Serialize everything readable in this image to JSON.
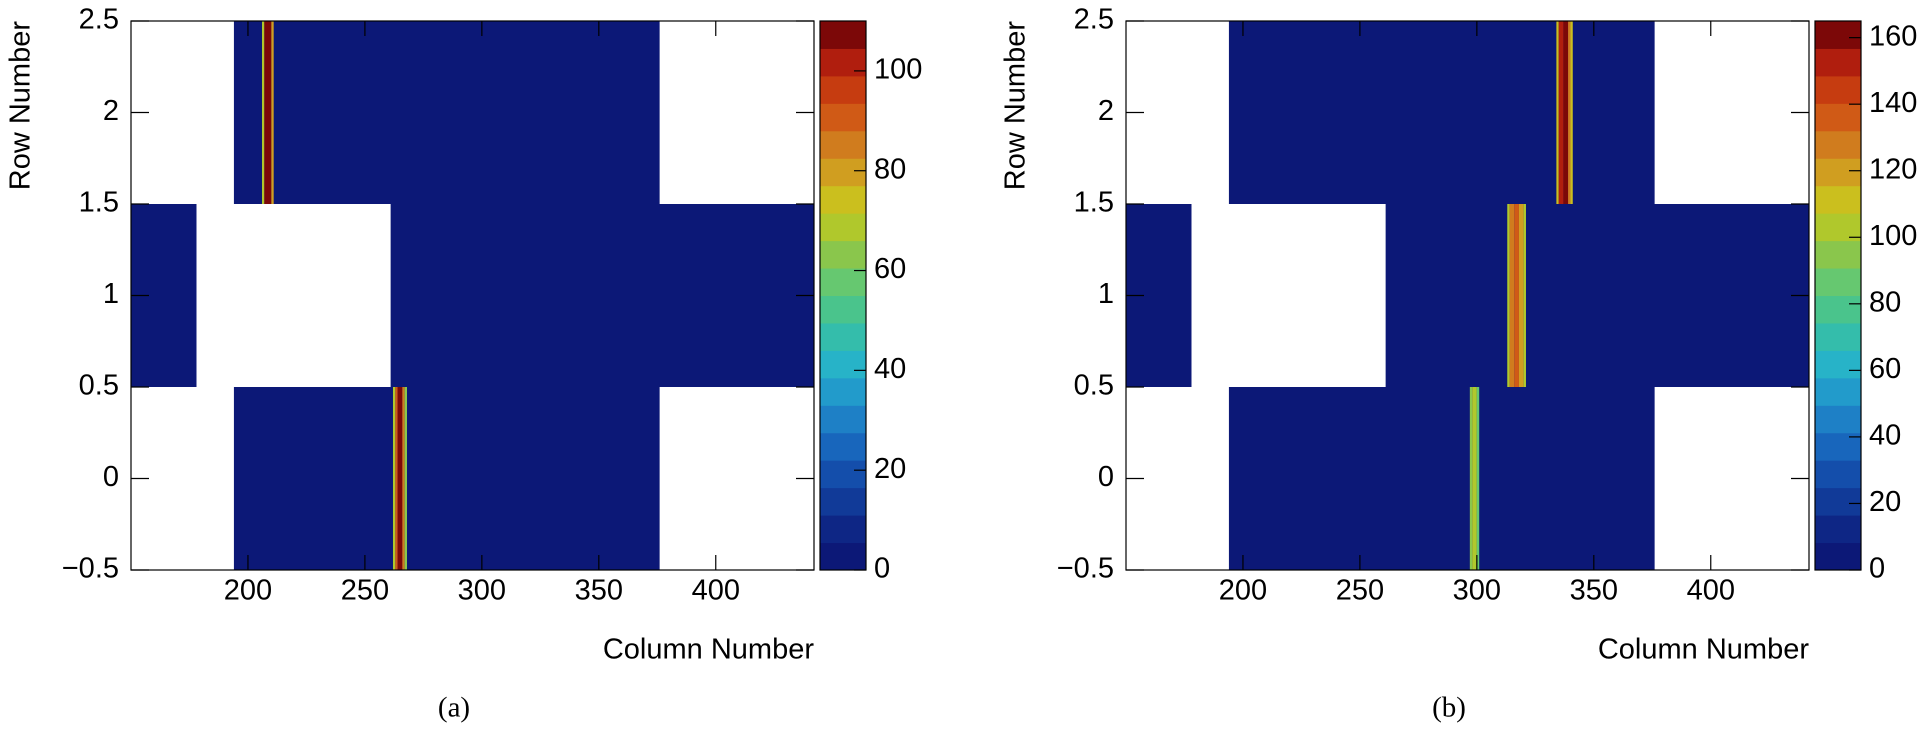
{
  "chart_data": [
    {
      "type": "heatmap",
      "caption": "(a)",
      "x_label": "Column Number",
      "y_label": "Row Number",
      "xlim": [
        150,
        442
      ],
      "xticks": [
        200,
        250,
        300,
        350,
        400
      ],
      "ylim": [
        -0.5,
        2.5
      ],
      "yticks": [
        {
          "value": -0.5,
          "label": "−0.5"
        },
        0,
        0.5,
        1,
        1.5,
        2,
        2.5
      ],
      "zlim": [
        0,
        110
      ],
      "zticks": [
        0,
        20,
        40,
        60,
        80,
        100
      ],
      "palette": [
        "#0c1877",
        "#0e2685",
        "#113a98",
        "#144eab",
        "#1866bc",
        "#1e80c6",
        "#229bcb",
        "#27b3c8",
        "#34bdab",
        "#4ac48c",
        "#66c870",
        "#8ac64c",
        "#b0c82c",
        "#cbbf1e",
        "#d09e20",
        "#d07c1e",
        "#d05a16",
        "#c63c10",
        "#b01e0e",
        "#7c0808"
      ],
      "cells": [
        {
          "row": 2,
          "x0": 194,
          "x1": 376,
          "value": 1
        },
        {
          "row": 2,
          "x0": 206,
          "x1": 207,
          "value": 70
        },
        {
          "row": 2,
          "x0": 207,
          "x1": 210,
          "value": 105
        },
        {
          "row": 2,
          "x0": 210,
          "x1": 211,
          "value": 80
        },
        {
          "row": 1,
          "x0": 150,
          "x1": 178,
          "value": 1
        },
        {
          "row": 1,
          "x0": 261,
          "x1": 442,
          "value": 1
        },
        {
          "row": 0,
          "x0": 194,
          "x1": 376,
          "value": 1
        },
        {
          "row": 0,
          "x0": 262,
          "x1": 263,
          "value": 70
        },
        {
          "row": 0,
          "x0": 263,
          "x1": 264,
          "value": 90
        },
        {
          "row": 0,
          "x0": 264,
          "x1": 266,
          "value": 105
        },
        {
          "row": 0,
          "x0": 266,
          "x1": 267,
          "value": 85
        },
        {
          "row": 0,
          "x0": 267,
          "x1": 268,
          "value": 65
        }
      ]
    },
    {
      "type": "heatmap",
      "caption": "(b)",
      "x_label": "Column Number",
      "y_label": "Row Number",
      "xlim": [
        150,
        442
      ],
      "xticks": [
        200,
        250,
        300,
        350,
        400
      ],
      "ylim": [
        -0.5,
        2.5
      ],
      "yticks": [
        {
          "value": -0.5,
          "label": "−0.5"
        },
        0,
        0.5,
        1,
        1.5,
        2,
        2.5
      ],
      "zlim": [
        0,
        165
      ],
      "zticks": [
        0,
        20,
        40,
        60,
        80,
        100,
        120,
        140,
        160
      ],
      "palette": [
        "#0c1877",
        "#0e2685",
        "#113a98",
        "#144eab",
        "#1866bc",
        "#1e80c6",
        "#229bcb",
        "#27b3c8",
        "#34bdab",
        "#4ac48c",
        "#66c870",
        "#8ac64c",
        "#b0c82c",
        "#cbbf1e",
        "#d09e20",
        "#d07c1e",
        "#d05a16",
        "#c63c10",
        "#b01e0e",
        "#7c0808"
      ],
      "cells": [
        {
          "row": 2,
          "x0": 194,
          "x1": 376,
          "value": 1
        },
        {
          "row": 2,
          "x0": 334,
          "x1": 335,
          "value": 110
        },
        {
          "row": 2,
          "x0": 335,
          "x1": 337,
          "value": 150
        },
        {
          "row": 2,
          "x0": 337,
          "x1": 339,
          "value": 160
        },
        {
          "row": 2,
          "x0": 339,
          "x1": 340,
          "value": 130
        },
        {
          "row": 2,
          "x0": 340,
          "x1": 341,
          "value": 110
        },
        {
          "row": 1,
          "x0": 150,
          "x1": 178,
          "value": 1
        },
        {
          "row": 1,
          "x0": 261,
          "x1": 442,
          "value": 1
        },
        {
          "row": 1,
          "x0": 313,
          "x1": 314,
          "value": 100
        },
        {
          "row": 1,
          "x0": 314,
          "x1": 316,
          "value": 130
        },
        {
          "row": 1,
          "x0": 316,
          "x1": 318,
          "value": 140
        },
        {
          "row": 1,
          "x0": 318,
          "x1": 320,
          "value": 120
        },
        {
          "row": 1,
          "x0": 320,
          "x1": 321,
          "value": 100
        },
        {
          "row": 0,
          "x0": 194,
          "x1": 376,
          "value": 1
        },
        {
          "row": 0,
          "x0": 297,
          "x1": 298,
          "value": 95
        },
        {
          "row": 0,
          "x0": 298,
          "x1": 300,
          "value": 100
        },
        {
          "row": 0,
          "x0": 300,
          "x1": 301,
          "value": 90
        }
      ]
    }
  ]
}
